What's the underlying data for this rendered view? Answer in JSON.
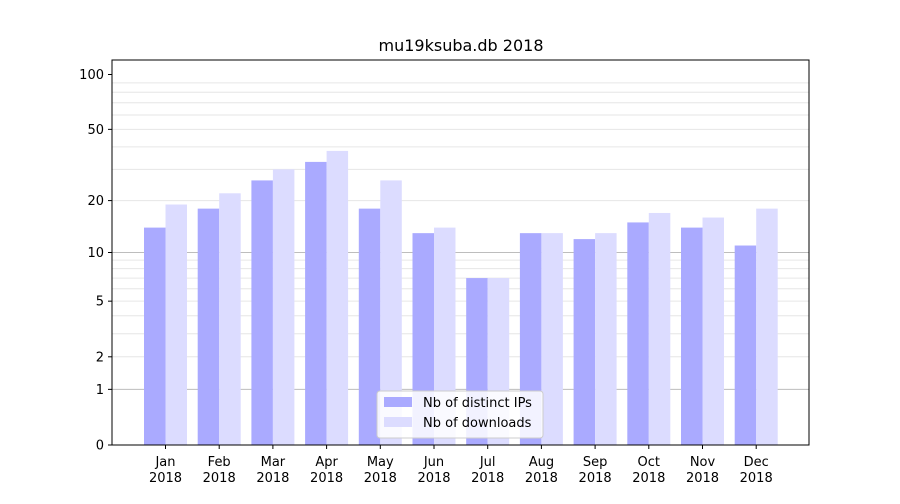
{
  "chart_data": {
    "type": "bar",
    "title": "mu19ksuba.db 2018",
    "xlabel": "",
    "ylabel": "",
    "categories": [
      {
        "month": "Jan",
        "year": "2018"
      },
      {
        "month": "Feb",
        "year": "2018"
      },
      {
        "month": "Mar",
        "year": "2018"
      },
      {
        "month": "Apr",
        "year": "2018"
      },
      {
        "month": "May",
        "year": "2018"
      },
      {
        "month": "Jun",
        "year": "2018"
      },
      {
        "month": "Jul",
        "year": "2018"
      },
      {
        "month": "Aug",
        "year": "2018"
      },
      {
        "month": "Sep",
        "year": "2018"
      },
      {
        "month": "Oct",
        "year": "2018"
      },
      {
        "month": "Nov",
        "year": "2018"
      },
      {
        "month": "Dec",
        "year": "2018"
      }
    ],
    "series": [
      {
        "name": "Nb of distinct IPs",
        "color": "#aaaaff",
        "values": [
          14,
          18,
          26,
          33,
          18,
          13,
          7,
          13,
          12,
          15,
          14,
          11
        ]
      },
      {
        "name": "Nb of downloads",
        "color": "#dcdcff",
        "values": [
          19,
          22,
          30,
          38,
          26,
          14,
          7,
          13,
          13,
          17,
          16,
          18
        ]
      }
    ],
    "y_scale": "log1p",
    "ylim": [
      0,
      120
    ],
    "yticks": [
      {
        "value": 0,
        "label": "0"
      },
      {
        "value": 1,
        "label": "1"
      },
      {
        "value": 2,
        "label": "2"
      },
      {
        "value": 5,
        "label": "5"
      },
      {
        "value": 10,
        "label": "10"
      },
      {
        "value": 20,
        "label": "20"
      },
      {
        "value": 50,
        "label": "50"
      },
      {
        "value": 100,
        "label": "100"
      }
    ],
    "major_gridlines": [
      1,
      10
    ],
    "minor_gridlines": [
      2,
      3,
      4,
      5,
      6,
      7,
      8,
      9,
      20,
      30,
      40,
      50,
      60,
      70,
      80,
      90
    ],
    "legend": "bottom-center"
  }
}
